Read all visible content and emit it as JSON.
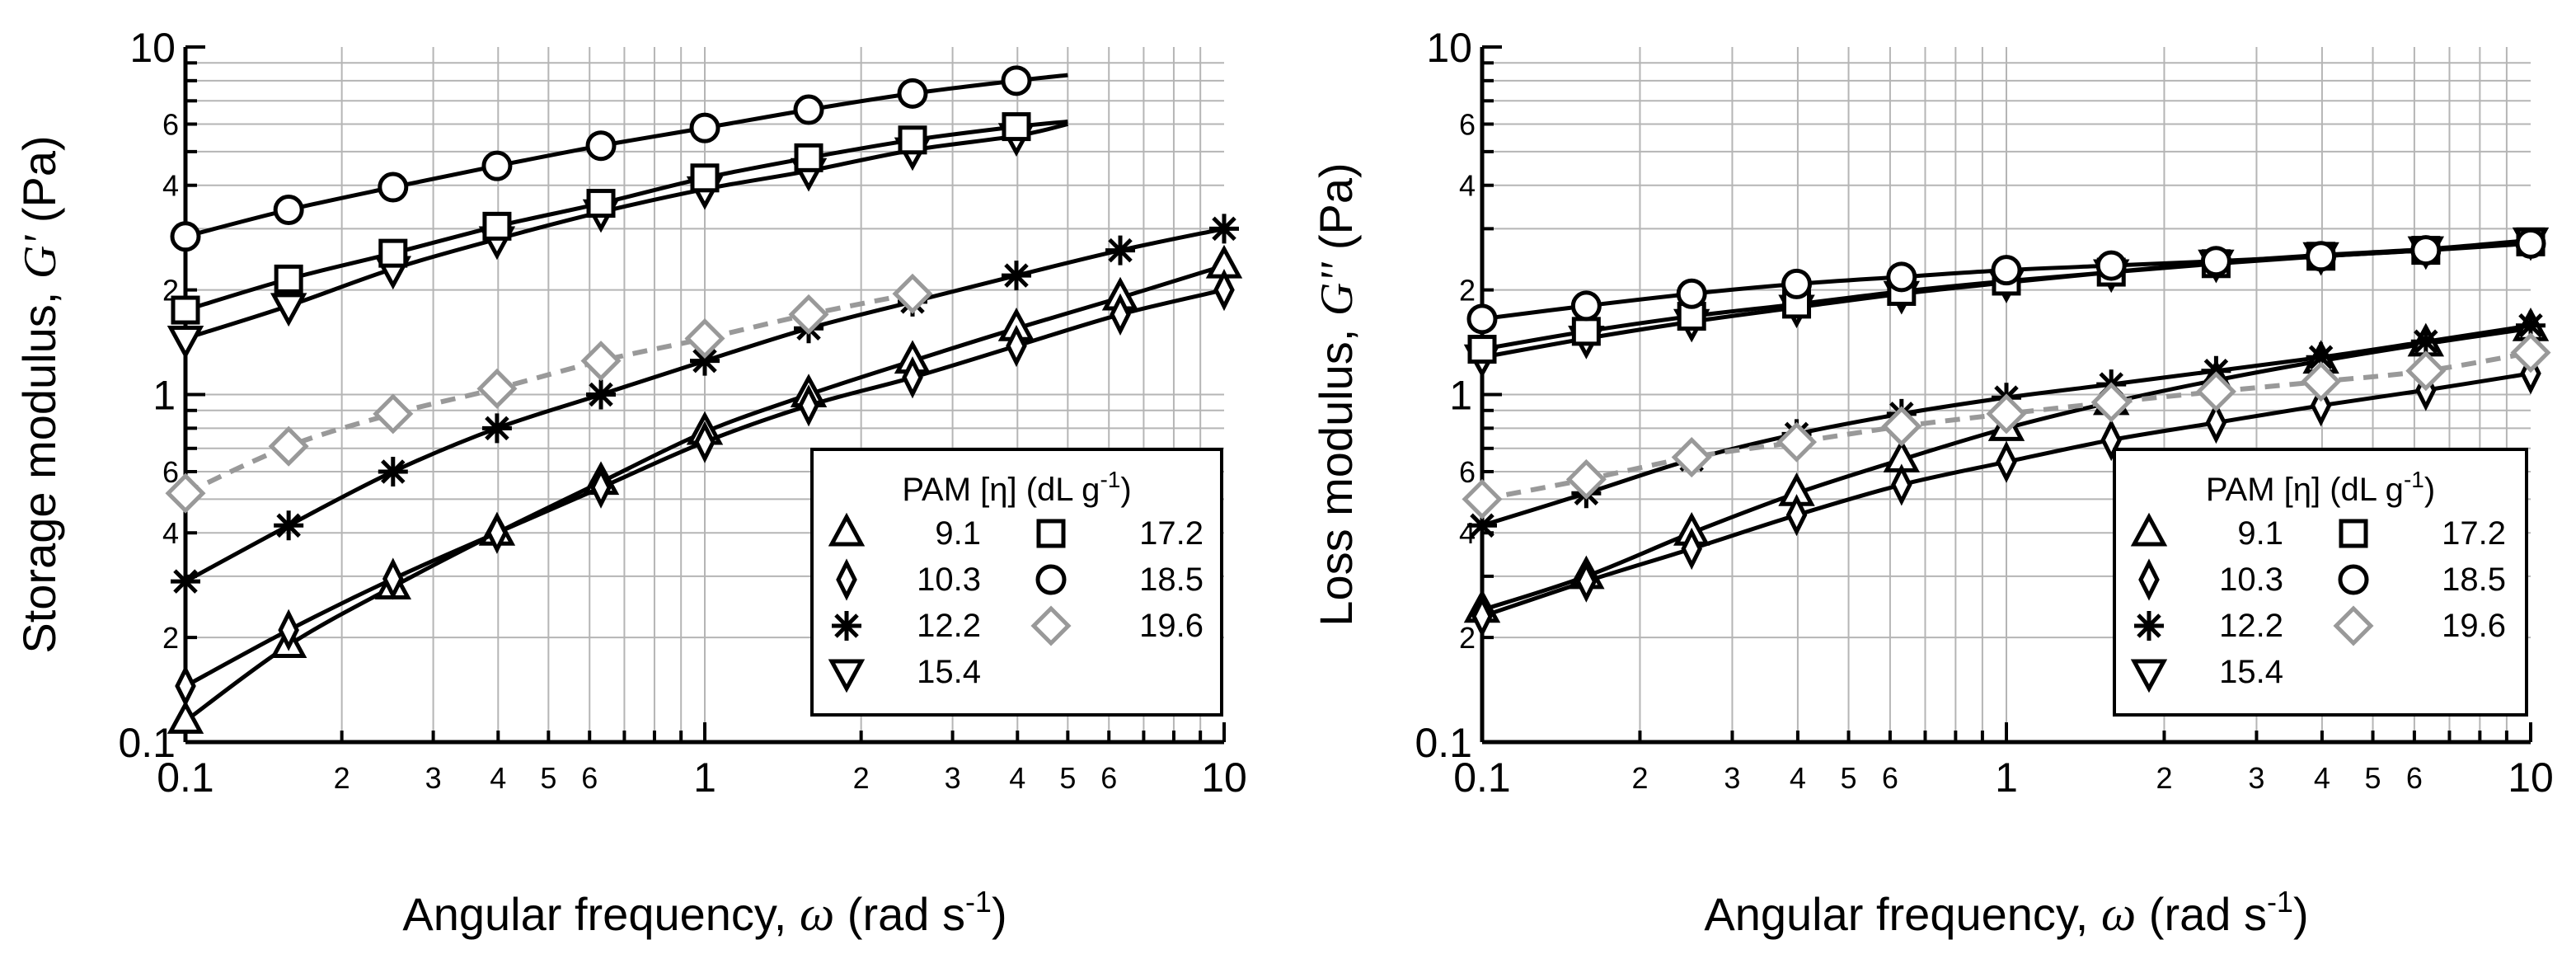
{
  "chart_data": [
    {
      "type": "line",
      "id": "storage",
      "xlabel_prefix": "Angular frequency, ",
      "xlabel_symbol": "ω",
      "xlabel_unit": " (rad s",
      "xlabel_sup": "-1",
      "xlabel_close": ")",
      "ylabel_prefix": "Storage modulus, ",
      "ylabel_symbol": "G'",
      "ylabel_unit": " (Pa)",
      "xscale": "log",
      "yscale": "log",
      "xlim": [
        0.1,
        10
      ],
      "ylim": [
        0.1,
        10
      ],
      "grid": true,
      "legend_position": "bottom-right",
      "x_major_ticks": [
        {
          "v": 0.1,
          "t": "0.1"
        },
        {
          "v": 1,
          "t": "1"
        },
        {
          "v": 10,
          "t": "10"
        }
      ],
      "x_minor_ticks": [
        {
          "v": 0.2,
          "t": "2"
        },
        {
          "v": 0.3,
          "t": "3"
        },
        {
          "v": 0.4,
          "t": "4"
        },
        {
          "v": 0.5,
          "t": "5"
        },
        {
          "v": 0.6,
          "t": "6"
        },
        {
          "v": 2,
          "t": "2"
        },
        {
          "v": 3,
          "t": "3"
        },
        {
          "v": 4,
          "t": "4"
        },
        {
          "v": 5,
          "t": "5"
        },
        {
          "v": 6,
          "t": "6"
        }
      ],
      "y_major_ticks": [
        {
          "v": 0.1,
          "t": "0.1"
        },
        {
          "v": 1,
          "t": "1"
        },
        {
          "v": 10,
          "t": "10"
        }
      ],
      "y_minor_ticks": [
        {
          "v": 0.2,
          "t": "2"
        },
        {
          "v": 0.4,
          "t": "4"
        },
        {
          "v": 0.6,
          "t": "6"
        },
        {
          "v": 2,
          "t": "2"
        },
        {
          "v": 4,
          "t": "4"
        },
        {
          "v": 6,
          "t": "6"
        }
      ],
      "series": [
        {
          "name": "9.1",
          "marker": "triangle-up",
          "color": "#000000",
          "dashed": false,
          "x": [
            0.1,
            0.158,
            0.251,
            0.398,
            0.631,
            1.0,
            1.585,
            2.512,
            3.981,
            6.31,
            10.0
          ],
          "y": [
            0.115,
            0.19,
            0.28,
            0.4,
            0.56,
            0.78,
            1.0,
            1.25,
            1.55,
            1.9,
            2.35
          ]
        },
        {
          "name": "10.3",
          "marker": "diamond-thin",
          "color": "#000000",
          "dashed": false,
          "x": [
            0.1,
            0.158,
            0.251,
            0.398,
            0.631,
            1.0,
            1.585,
            2.512,
            3.981,
            6.31,
            10.0
          ],
          "y": [
            0.145,
            0.21,
            0.295,
            0.4,
            0.54,
            0.73,
            0.93,
            1.12,
            1.38,
            1.7,
            2.0
          ]
        },
        {
          "name": "12.2",
          "marker": "asterisk",
          "color": "#000000",
          "dashed": false,
          "x": [
            0.1,
            0.158,
            0.251,
            0.398,
            0.631,
            1.0,
            1.585,
            2.512,
            3.981,
            6.31,
            10.0
          ],
          "y": [
            0.29,
            0.42,
            0.6,
            0.8,
            1.0,
            1.25,
            1.55,
            1.85,
            2.2,
            2.6,
            3.0
          ]
        },
        {
          "name": "15.4",
          "marker": "triangle-down",
          "color": "#000000",
          "dashed": false,
          "x": [
            0.1,
            0.158,
            0.251,
            0.398,
            0.631,
            1.0,
            1.585,
            2.512,
            3.981
          ],
          "y": [
            1.45,
            1.8,
            2.3,
            2.8,
            3.35,
            3.9,
            4.4,
            5.05,
            5.55
          ]
        },
        {
          "name": "17.2",
          "marker": "square",
          "color": "#000000",
          "dashed": false,
          "x": [
            0.1,
            0.158,
            0.251,
            0.398,
            0.631,
            1.0,
            1.585,
            2.512,
            3.981
          ],
          "y": [
            1.75,
            2.15,
            2.55,
            3.05,
            3.55,
            4.2,
            4.8,
            5.4,
            5.9
          ]
        },
        {
          "name": "18.5",
          "marker": "circle",
          "color": "#000000",
          "dashed": false,
          "x": [
            0.1,
            0.158,
            0.251,
            0.398,
            0.631,
            1.0,
            1.585,
            2.512,
            3.981
          ],
          "y": [
            2.85,
            3.4,
            3.95,
            4.55,
            5.2,
            5.85,
            6.6,
            7.35,
            8.0
          ]
        },
        {
          "name": "19.6",
          "marker": "diamond",
          "color": "#999999",
          "dashed": true,
          "x": [
            0.1,
            0.158,
            0.251,
            0.398,
            0.631,
            1.0,
            1.585,
            2.512
          ],
          "y": [
            0.52,
            0.71,
            0.88,
            1.04,
            1.25,
            1.45,
            1.7,
            1.95
          ]
        }
      ],
      "fit_lines": [
        {
          "for": "9.1",
          "x_end": 10.0
        },
        {
          "for": "10.3",
          "x_end": 10.0
        },
        {
          "for": "12.2",
          "x_end": 10.0
        },
        {
          "for": "15.4",
          "x_end": 5.0,
          "y_end": 6.0
        },
        {
          "for": "17.2",
          "x_end": 5.0,
          "y_end": 6.1
        },
        {
          "for": "18.5",
          "x_end": 5.0,
          "y_end": 8.3
        }
      ]
    },
    {
      "type": "line",
      "id": "loss",
      "xlabel_prefix": "Angular frequency, ",
      "xlabel_symbol": "ω",
      "xlabel_unit": " (rad s",
      "xlabel_sup": "-1",
      "xlabel_close": ")",
      "ylabel_prefix": "Loss modulus, ",
      "ylabel_symbol": "G''",
      "ylabel_unit": " (Pa)",
      "xscale": "log",
      "yscale": "log",
      "xlim": [
        0.1,
        10
      ],
      "ylim": [
        0.1,
        10
      ],
      "grid": true,
      "legend_position": "bottom-right",
      "x_major_ticks": [
        {
          "v": 0.1,
          "t": "0.1"
        },
        {
          "v": 1,
          "t": "1"
        },
        {
          "v": 10,
          "t": "10"
        }
      ],
      "x_minor_ticks": [
        {
          "v": 0.2,
          "t": "2"
        },
        {
          "v": 0.3,
          "t": "3"
        },
        {
          "v": 0.4,
          "t": "4"
        },
        {
          "v": 0.5,
          "t": "5"
        },
        {
          "v": 0.6,
          "t": "6"
        },
        {
          "v": 2,
          "t": "2"
        },
        {
          "v": 3,
          "t": "3"
        },
        {
          "v": 4,
          "t": "4"
        },
        {
          "v": 5,
          "t": "5"
        },
        {
          "v": 6,
          "t": "6"
        }
      ],
      "y_major_ticks": [
        {
          "v": 0.1,
          "t": "0.1"
        },
        {
          "v": 1,
          "t": "1"
        },
        {
          "v": 10,
          "t": "10"
        }
      ],
      "y_minor_ticks": [
        {
          "v": 0.2,
          "t": "2"
        },
        {
          "v": 0.4,
          "t": "4"
        },
        {
          "v": 0.6,
          "t": "6"
        },
        {
          "v": 2,
          "t": "2"
        },
        {
          "v": 4,
          "t": "4"
        },
        {
          "v": 6,
          "t": "6"
        }
      ],
      "series": [
        {
          "name": "9.1",
          "marker": "triangle-up",
          "color": "#000000",
          "dashed": false,
          "x": [
            0.1,
            0.158,
            0.251,
            0.398,
            0.631,
            1.0,
            1.585,
            2.512,
            3.981,
            6.31,
            10.0
          ],
          "y": [
            0.24,
            0.3,
            0.4,
            0.52,
            0.65,
            0.8,
            0.95,
            1.1,
            1.25,
            1.4,
            1.55
          ]
        },
        {
          "name": "10.3",
          "marker": "diamond-thin",
          "color": "#000000",
          "dashed": false,
          "x": [
            0.1,
            0.158,
            0.251,
            0.398,
            0.631,
            1.0,
            1.585,
            2.512,
            3.981,
            6.31,
            10.0
          ],
          "y": [
            0.23,
            0.29,
            0.36,
            0.45,
            0.55,
            0.64,
            0.74,
            0.83,
            0.93,
            1.03,
            1.15
          ]
        },
        {
          "name": "12.2",
          "marker": "asterisk",
          "color": "#000000",
          "dashed": false,
          "x": [
            0.1,
            0.158,
            0.251,
            0.398,
            0.631,
            1.0,
            1.585,
            2.512,
            3.981,
            6.31,
            10.0
          ],
          "y": [
            0.42,
            0.52,
            0.65,
            0.77,
            0.88,
            0.98,
            1.07,
            1.17,
            1.28,
            1.42,
            1.58
          ]
        },
        {
          "name": "15.4",
          "marker": "triangle-down",
          "color": "#000000",
          "dashed": false,
          "x": [
            0.1,
            0.158,
            0.251,
            0.398,
            0.631,
            1.0,
            1.585,
            2.512,
            3.981,
            6.31,
            10.0
          ],
          "y": [
            1.28,
            1.45,
            1.62,
            1.78,
            1.95,
            2.1,
            2.25,
            2.4,
            2.52,
            2.62,
            2.78
          ]
        },
        {
          "name": "17.2",
          "marker": "square",
          "color": "#000000",
          "dashed": false,
          "x": [
            0.1,
            0.158,
            0.251,
            0.398,
            0.631,
            1.0,
            1.585,
            2.512,
            3.981,
            6.31,
            10.0
          ],
          "y": [
            1.35,
            1.52,
            1.68,
            1.82,
            1.98,
            2.12,
            2.25,
            2.38,
            2.5,
            2.6,
            2.75
          ]
        },
        {
          "name": "18.5",
          "marker": "circle",
          "color": "#000000",
          "dashed": false,
          "x": [
            0.1,
            0.158,
            0.251,
            0.398,
            0.631,
            1.0,
            1.585,
            2.512,
            3.981,
            6.31,
            10.0
          ],
          "y": [
            1.65,
            1.8,
            1.95,
            2.08,
            2.18,
            2.28,
            2.35,
            2.42,
            2.5,
            2.6,
            2.72
          ]
        },
        {
          "name": "19.6",
          "marker": "diamond",
          "color": "#999999",
          "dashed": true,
          "x": [
            0.1,
            0.158,
            0.251,
            0.398,
            0.631,
            1.0,
            1.585,
            2.512,
            3.981,
            6.31,
            10.0
          ],
          "y": [
            0.5,
            0.57,
            0.66,
            0.73,
            0.81,
            0.88,
            0.95,
            1.02,
            1.09,
            1.17,
            1.32
          ]
        }
      ],
      "fit_lines": []
    }
  ],
  "legend": {
    "title_prefix": "PAM [η] (dL g",
    "title_sup": "-1",
    "title_close": ")",
    "entries_col1": [
      "9.1",
      "10.3",
      "12.2",
      "15.4"
    ],
    "entries_col2": [
      "17.2",
      "18.5",
      "19.6"
    ]
  }
}
